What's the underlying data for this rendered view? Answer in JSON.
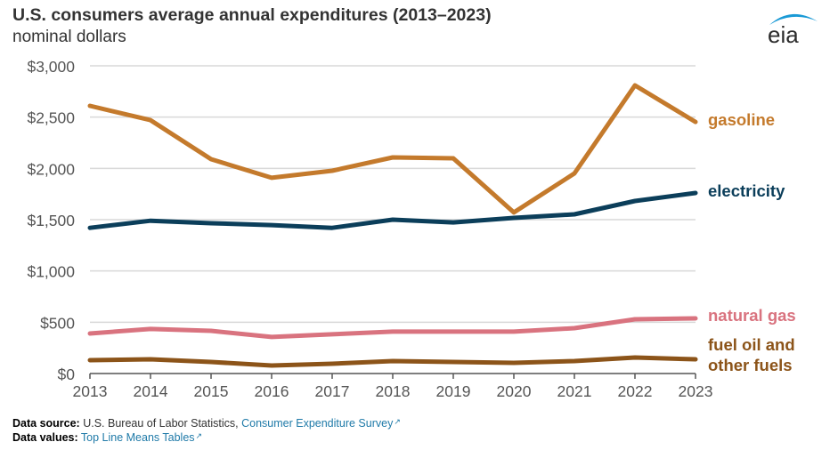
{
  "header": {
    "title": "U.S. consumers average annual expenditures (2013–2023)",
    "subtitle": "nominal dollars",
    "logo_text": "eia"
  },
  "footer": {
    "source_label": "Data source:",
    "source_text": "U.S. Bureau of Labor Statistics,",
    "source_link": "Consumer Expenditure Survey",
    "values_label": "Data values:",
    "values_link": "Top Line Means Tables",
    "link_icon": "external-link-icon"
  },
  "colors": {
    "gasoline": "#c47a2c",
    "electricity": "#0b3e5a",
    "natural_gas": "#d9737f",
    "fuel_oil": "#8c5419",
    "grid": "#d9d9d9",
    "axis_text": "#555555",
    "link": "#1f7aa8"
  },
  "chart_data": {
    "type": "line",
    "title": "U.S. consumers average annual expenditures (2013–2023)",
    "subtitle": "nominal dollars",
    "xlabel": "",
    "ylabel": "",
    "x": [
      2013,
      2014,
      2015,
      2016,
      2017,
      2018,
      2019,
      2020,
      2021,
      2022,
      2023
    ],
    "x_tick_labels": [
      "2013",
      "2014",
      "2015",
      "2016",
      "2017",
      "2018",
      "2019",
      "2020",
      "2021",
      "2022",
      "2023"
    ],
    "ylim": [
      0,
      3000
    ],
    "y_ticks": [
      0,
      500,
      1000,
      1500,
      2000,
      2500,
      3000
    ],
    "y_tick_labels": [
      "$0",
      "$500",
      "$1,000",
      "$1,500",
      "$2,000",
      "$2,500",
      "$3,000"
    ],
    "grid": true,
    "legend": "direct labels at right end of lines",
    "series": [
      {
        "key": "gasoline",
        "name": "gasoline",
        "label_lines": [
          "gasoline"
        ],
        "values": [
          2610,
          2470,
          2090,
          1908,
          1977,
          2107,
          2098,
          1570,
          1951,
          2809,
          2453
        ]
      },
      {
        "key": "electricity",
        "name": "electricity",
        "label_lines": [
          "electricity"
        ],
        "values": [
          1420,
          1490,
          1465,
          1447,
          1420,
          1500,
          1473,
          1517,
          1552,
          1682,
          1760
        ]
      },
      {
        "key": "natural_gas",
        "name": "natural gas",
        "label_lines": [
          "natural gas"
        ],
        "values": [
          390,
          434,
          416,
          356,
          382,
          408,
          408,
          408,
          442,
          529,
          538
        ]
      },
      {
        "key": "fuel_oil",
        "name": "fuel oil and other fuels",
        "label_lines": [
          "fuel oil and",
          "other fuels"
        ],
        "values": [
          130,
          139,
          113,
          78,
          95,
          121,
          113,
          104,
          121,
          156,
          139
        ]
      }
    ]
  }
}
